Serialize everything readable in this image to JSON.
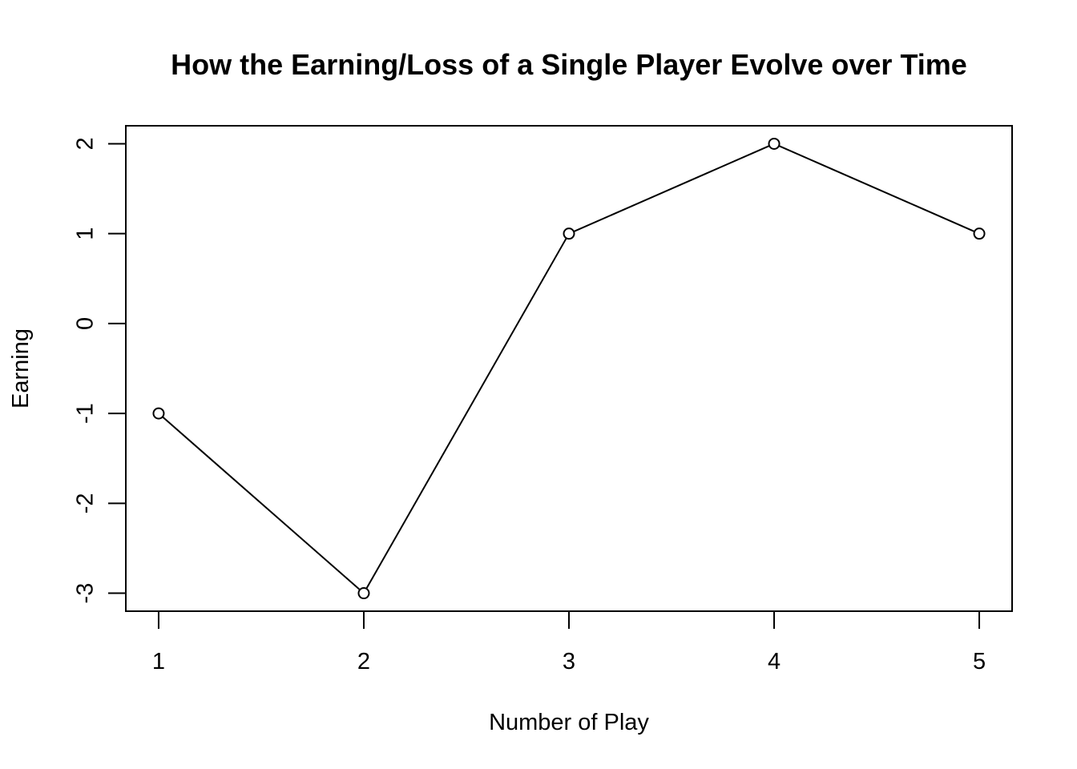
{
  "chart_data": {
    "type": "line",
    "title": "How the Earning/Loss of a Single Player Evolve over Time",
    "xlabel": "Number of Play",
    "ylabel": "Earning",
    "x": [
      1,
      2,
      3,
      4,
      5
    ],
    "series": [
      {
        "values": [
          -1,
          -3,
          1,
          2,
          1
        ]
      }
    ],
    "xlim": [
      0.84,
      5.16
    ],
    "ylim": [
      -3.2,
      2.2
    ],
    "xticks": [
      1,
      2,
      3,
      4,
      5
    ],
    "xtick_labels": [
      "1",
      "2",
      "3",
      "4",
      "5"
    ],
    "yticks": [
      -3,
      -2,
      -1,
      0,
      1,
      2
    ],
    "ytick_labels": [
      "-3",
      "-2",
      "-1",
      "0",
      "1",
      "2"
    ],
    "markers": "open-circle",
    "grid": false,
    "line_color": "#000000",
    "marker_color": "#000000"
  }
}
